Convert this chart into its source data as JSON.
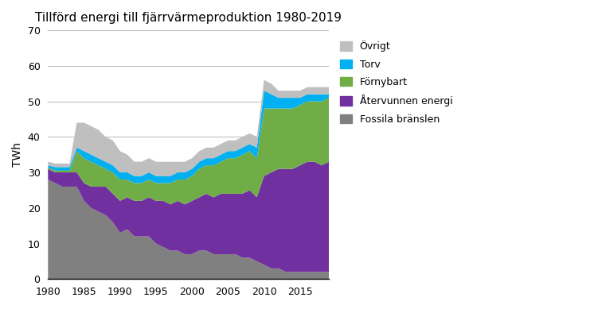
{
  "title_display": "Tillförd energi till fjärrvärmeproduktion 1980-2019",
  "ylabel": "TWh",
  "years": [
    1980,
    1981,
    1982,
    1983,
    1984,
    1985,
    1986,
    1987,
    1988,
    1989,
    1990,
    1991,
    1992,
    1993,
    1994,
    1995,
    1996,
    1997,
    1998,
    1999,
    2000,
    2001,
    2002,
    2003,
    2004,
    2005,
    2006,
    2007,
    2008,
    2009,
    2010,
    2011,
    2012,
    2013,
    2014,
    2015,
    2016,
    2017,
    2018,
    2019
  ],
  "fossila": [
    28,
    27,
    26,
    26,
    26,
    22,
    20,
    19,
    18,
    16,
    13,
    14,
    12,
    12,
    12,
    10,
    9,
    8,
    8,
    7,
    7,
    8,
    8,
    7,
    7,
    7,
    7,
    6,
    6,
    5,
    4,
    3,
    3,
    2,
    2,
    2,
    2,
    2,
    2,
    2
  ],
  "atervunnen": [
    3,
    3,
    4,
    4,
    4,
    5,
    6,
    7,
    8,
    8,
    9,
    9,
    10,
    10,
    11,
    12,
    13,
    13,
    14,
    14,
    15,
    15,
    16,
    16,
    17,
    17,
    17,
    18,
    19,
    18,
    25,
    27,
    28,
    29,
    29,
    30,
    31,
    31,
    30,
    31
  ],
  "fornybart": [
    0.5,
    0.5,
    0.5,
    0.5,
    6,
    7,
    7,
    6,
    5,
    6,
    6,
    5,
    5,
    5,
    5,
    5,
    5,
    6,
    6,
    7,
    7,
    8,
    8,
    9,
    9,
    10,
    10,
    11,
    11,
    11,
    19,
    18,
    17,
    17,
    17,
    17,
    17,
    17,
    18,
    18
  ],
  "torv": [
    0.5,
    1,
    1,
    1,
    1,
    2,
    2,
    2,
    2,
    2,
    2,
    2,
    2,
    2,
    2,
    2,
    2,
    2,
    2,
    2,
    2,
    2,
    2,
    2,
    2,
    2,
    2,
    2,
    2,
    3,
    5,
    4,
    3,
    3,
    3,
    2,
    2,
    2,
    2,
    1
  ],
  "ovrigt": [
    1,
    1,
    1,
    1,
    7,
    8,
    8,
    8,
    7,
    7,
    6,
    5,
    4,
    4,
    4,
    4,
    4,
    4,
    3,
    3,
    3,
    3,
    3,
    3,
    3,
    3,
    3,
    3,
    3,
    3,
    3,
    3,
    2,
    2,
    2,
    2,
    2,
    2,
    2,
    2
  ],
  "color_fossila": "#808080",
  "color_atervunnen": "#7030a0",
  "color_fornybart": "#70ad47",
  "color_torv": "#00b0f0",
  "color_ovrigt": "#bfbfbf",
  "ylim": [
    0,
    70
  ],
  "yticks": [
    0,
    10,
    20,
    30,
    40,
    50,
    60,
    70
  ],
  "background_color": "#ffffff"
}
